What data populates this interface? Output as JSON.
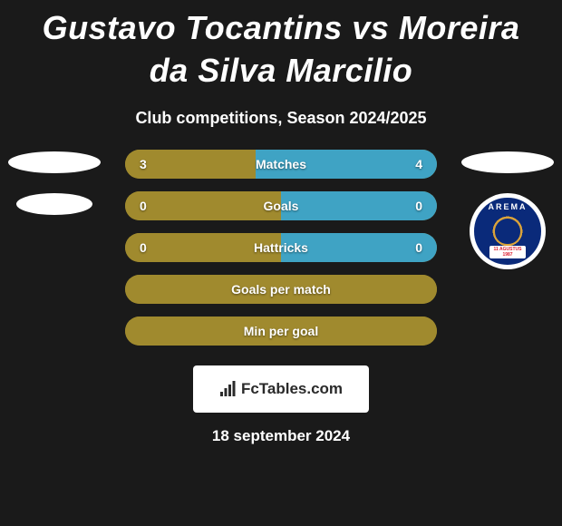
{
  "title": "Gustavo Tocantins vs Moreira da Silva Marcilio",
  "subtitle": "Club competitions, Season 2024/2025",
  "colors": {
    "background": "#1a1a1a",
    "text": "#ffffff",
    "bar_left": "#a08a2e",
    "bar_right": "#3fa3c4",
    "bar_empty_primary": "#a08a2e",
    "placeholder": "#ffffff"
  },
  "left_player": {
    "has_photo": false,
    "has_club_badge": false
  },
  "right_player": {
    "has_photo": false,
    "has_club_badge": true,
    "club_name": "AREMA",
    "club_badge_subtext": "11 AGUSTUS 1987",
    "club_badge_colors": {
      "outer": "#0a2a7a",
      "inner": "#d9a23a",
      "accent": "#d23030"
    }
  },
  "stats": [
    {
      "label": "Matches",
      "left_value": "3",
      "right_value": "4",
      "left_pct": 42,
      "right_pct": 58,
      "left_color": "#a08a2e",
      "right_color": "#3fa3c4"
    },
    {
      "label": "Goals",
      "left_value": "0",
      "right_value": "0",
      "left_pct": 50,
      "right_pct": 50,
      "left_color": "#a08a2e",
      "right_color": "#3fa3c4"
    },
    {
      "label": "Hattricks",
      "left_value": "0",
      "right_value": "0",
      "left_pct": 50,
      "right_pct": 50,
      "left_color": "#a08a2e",
      "right_color": "#3fa3c4"
    },
    {
      "label": "Goals per match",
      "left_value": "",
      "right_value": "",
      "left_pct": 100,
      "right_pct": 0,
      "left_color": "#a08a2e",
      "right_color": "#3fa3c4"
    },
    {
      "label": "Min per goal",
      "left_value": "",
      "right_value": "",
      "left_pct": 100,
      "right_pct": 0,
      "left_color": "#a08a2e",
      "right_color": "#3fa3c4"
    }
  ],
  "footer": {
    "brand": "FcTables.com",
    "date": "18 september 2024"
  }
}
